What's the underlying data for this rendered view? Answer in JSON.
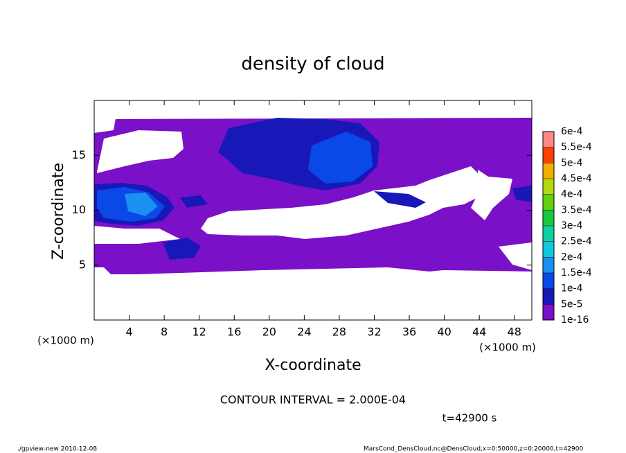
{
  "chart_data": {
    "type": "contour",
    "title": "density of cloud",
    "xlabel": "X-coordinate",
    "ylabel": "Z-coordinate",
    "x_unit": "(×1000 m)",
    "y_unit": "(×1000 m)",
    "xlim": [
      0,
      50
    ],
    "xticks": [
      4,
      8,
      12,
      16,
      20,
      24,
      28,
      32,
      36,
      40,
      44,
      48
    ],
    "ylim": [
      0,
      20
    ],
    "yticks": [
      5,
      10,
      15
    ],
    "levels": [
      {
        "value": 1e-16,
        "label": "1e-16"
      },
      {
        "value": 5e-05,
        "label": "5e-5"
      },
      {
        "value": 0.0001,
        "label": "1e-4"
      },
      {
        "value": 0.00015,
        "label": "1.5e-4"
      },
      {
        "value": 0.0002,
        "label": "2e-4"
      },
      {
        "value": 0.00025,
        "label": "2.5e-4"
      },
      {
        "value": 0.0003,
        "label": "3e-4"
      },
      {
        "value": 0.00035,
        "label": "3.5e-4"
      },
      {
        "value": 0.0004,
        "label": "4e-4"
      },
      {
        "value": 0.00045,
        "label": "4.5e-4"
      },
      {
        "value": 0.0005,
        "label": "5e-4"
      },
      {
        "value": 0.00055,
        "label": "5.5e-4"
      },
      {
        "value": 0.0006,
        "label": "6e-4"
      }
    ],
    "colors": [
      "#7a10c8",
      "#1818b8",
      "#0a48e8",
      "#1a90f0",
      "#10c8e0",
      "#10d0a0",
      "#18c840",
      "#60d010",
      "#b8d810",
      "#f0b000",
      "#ff4000",
      "#ff8888"
    ],
    "contour_interval": "CONTOUR INTERVAL = 2.000E-04",
    "time": "t=42900 s",
    "footer_left": "./gpview-new   2010-12-08",
    "footer_right": "MarsCond_DensCloud.nc@DensCloud,x=0:50000,z=0:20000,t=42900"
  }
}
